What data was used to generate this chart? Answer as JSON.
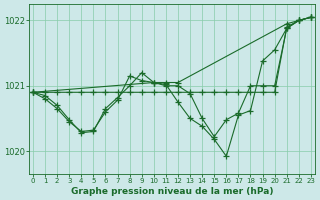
{
  "bg_color": "#cde8e8",
  "grid_color": "#88ccaa",
  "line_color": "#1a6b2a",
  "xlabel": "Graphe pression niveau de la mer (hPa)",
  "ylim": [
    1019.65,
    1022.25
  ],
  "yticks": [
    1020,
    1021,
    1022
  ],
  "xlim": [
    -0.3,
    23.3
  ],
  "xticks": [
    0,
    1,
    2,
    3,
    4,
    5,
    6,
    7,
    8,
    9,
    10,
    11,
    12,
    13,
    14,
    15,
    16,
    17,
    18,
    19,
    20,
    21,
    22,
    23
  ],
  "series": [
    {
      "x": [
        0,
        1,
        2,
        3,
        4,
        5,
        6,
        7,
        8,
        9,
        10,
        11,
        12,
        13,
        14,
        15,
        16,
        17,
        18,
        19,
        20,
        21,
        22,
        23
      ],
      "y": [
        1020.9,
        1020.9,
        1020.9,
        1020.9,
        1020.9,
        1020.9,
        1020.9,
        1020.9,
        1020.9,
        1020.9,
        1020.9,
        1020.9,
        1020.9,
        1020.9,
        1020.9,
        1020.9,
        1020.9,
        1020.9,
        1020.9,
        1020.9,
        1020.9,
        1021.9,
        1022.0,
        1022.05
      ]
    },
    {
      "x": [
        0,
        10,
        11,
        12,
        21,
        22,
        23
      ],
      "y": [
        1020.9,
        1021.05,
        1021.05,
        1021.05,
        1021.95,
        1022.0,
        1022.05
      ]
    },
    {
      "x": [
        0,
        1,
        2,
        3,
        4,
        5,
        6,
        7,
        8,
        9,
        10,
        11,
        12,
        13,
        14,
        15,
        16,
        17,
        18,
        19,
        20,
        21,
        22,
        23
      ],
      "y": [
        1020.9,
        1020.8,
        1020.65,
        1020.45,
        1020.3,
        1020.32,
        1020.6,
        1020.78,
        1021.15,
        1021.08,
        1021.05,
        1021.02,
        1020.75,
        1020.5,
        1020.38,
        1020.18,
        1019.92,
        1020.55,
        1020.62,
        1021.38,
        1021.55,
        1021.88,
        1022.0,
        1022.05
      ]
    },
    {
      "x": [
        0,
        1,
        2,
        3,
        4,
        5,
        6,
        7,
        8,
        9,
        10,
        11,
        12,
        13,
        14,
        15,
        16,
        17,
        18,
        19,
        20,
        21,
        22,
        23
      ],
      "y": [
        1020.9,
        1020.85,
        1020.7,
        1020.48,
        1020.28,
        1020.3,
        1020.65,
        1020.82,
        1021.0,
        1021.2,
        1021.05,
        1021.0,
        1021.0,
        1020.88,
        1020.5,
        1020.22,
        1020.48,
        1020.58,
        1021.0,
        1021.0,
        1021.0,
        1021.88,
        1022.0,
        1022.05
      ]
    }
  ]
}
